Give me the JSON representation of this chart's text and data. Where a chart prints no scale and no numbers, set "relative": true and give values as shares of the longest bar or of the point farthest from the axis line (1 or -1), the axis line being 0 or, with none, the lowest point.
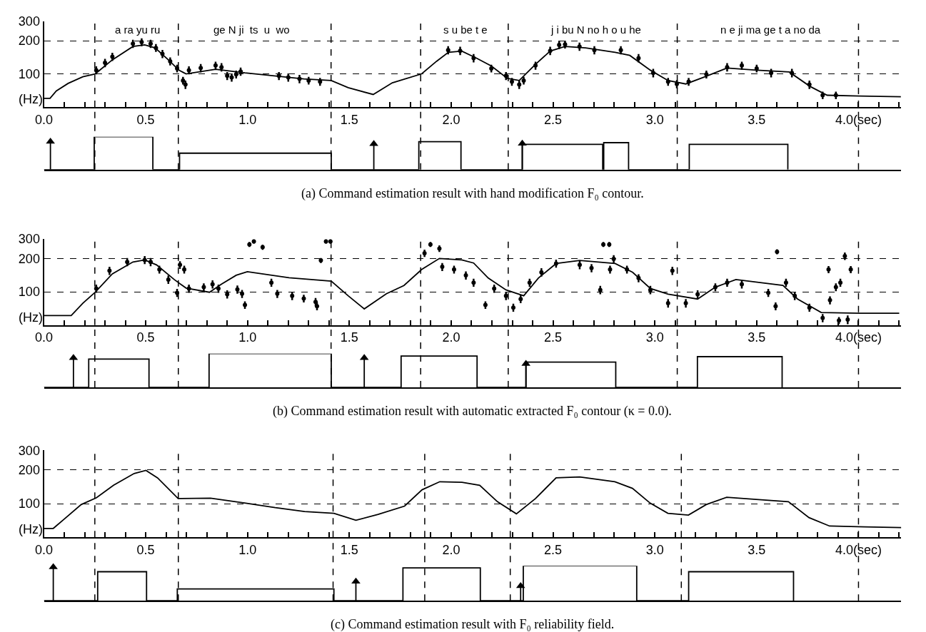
{
  "chart_data": [
    {
      "type": "line",
      "ylabel": "(Hz)",
      "log": true,
      "grid": "y",
      "xlim": [
        0,
        4.21
      ],
      "ylim": [
        50,
        300
      ],
      "yticks": [
        100,
        200,
        300
      ],
      "xticks": [
        {
          "value": 0,
          "label": "0.0"
        },
        {
          "value": 0.1,
          "label": null
        },
        {
          "value": 0.2,
          "label": null
        },
        {
          "value": 0.3,
          "label": null
        },
        {
          "value": 0.4,
          "label": null
        },
        {
          "value": 0.5,
          "label": "0.5"
        },
        {
          "value": 0.6,
          "label": null
        },
        {
          "value": 0.7,
          "label": null
        },
        {
          "value": 0.8,
          "label": null
        },
        {
          "value": 0.9,
          "label": null
        },
        {
          "value": 1.0,
          "label": "1.0"
        },
        {
          "value": 1.1,
          "label": null
        },
        {
          "value": 1.2,
          "label": null
        },
        {
          "value": 1.3,
          "label": null
        },
        {
          "value": 1.4,
          "label": null
        },
        {
          "value": 1.5,
          "label": "1.5"
        },
        {
          "value": 1.6,
          "label": null
        },
        {
          "value": 1.7,
          "label": null
        },
        {
          "value": 1.8,
          "label": null
        },
        {
          "value": 1.9,
          "label": null
        },
        {
          "value": 2.0,
          "label": "2.0"
        },
        {
          "value": 2.1,
          "label": null
        },
        {
          "value": 2.2,
          "label": null
        },
        {
          "value": 2.3,
          "label": null
        },
        {
          "value": 2.4,
          "label": null
        },
        {
          "value": 2.5,
          "label": "2.5"
        },
        {
          "value": 2.6,
          "label": null
        },
        {
          "value": 2.7,
          "label": null
        },
        {
          "value": 2.8,
          "label": null
        },
        {
          "value": 2.9,
          "label": null
        },
        {
          "value": 3.0,
          "label": "3.0"
        },
        {
          "value": 3.1,
          "label": null
        },
        {
          "value": 3.2,
          "label": null
        },
        {
          "value": 3.3,
          "label": null
        },
        {
          "value": 3.4,
          "label": null
        },
        {
          "value": 3.5,
          "label": "3.5"
        },
        {
          "value": 3.6,
          "label": null
        },
        {
          "value": 3.7,
          "label": null
        },
        {
          "value": 3.8,
          "label": null
        },
        {
          "value": 3.9,
          "label": null
        },
        {
          "value": 4.0,
          "label": "4.0(sec)"
        },
        {
          "value": 4.1,
          "label": null
        },
        {
          "value": 4.2,
          "label": null
        }
      ],
      "ref_lines": [
        {
          "axis": "x",
          "value": 0.25,
          "line_style": "dashed"
        },
        {
          "axis": "x",
          "value": 0.66,
          "line_style": "dashed"
        },
        {
          "axis": "x",
          "value": 1.41,
          "line_style": "dashed"
        },
        {
          "axis": "x",
          "value": 1.85,
          "line_style": "dashed"
        },
        {
          "axis": "x",
          "value": 2.28,
          "line_style": "dashed"
        },
        {
          "axis": "x",
          "value": 3.11,
          "line_style": "dashed"
        },
        {
          "axis": "x",
          "value": 4.0,
          "line_style": "dashed"
        }
      ],
      "annotations": [
        "a ra yu ru",
        "ge N ji  ts  u  wo",
        "s u be t e",
        "j i bu N no h o u he",
        "n e ji ma ge t a no da"
      ],
      "series": [
        {
          "color": "#000000",
          "x": [
            0,
            0.03,
            0.061,
            0.119,
            0.191,
            0.252,
            0.336,
            0.437,
            0.495,
            0.546,
            0.611,
            0.663,
            0.698,
            0.843,
            0.987,
            1.132,
            1.276,
            1.411,
            1.494,
            1.617,
            1.711,
            1.855,
            1.928,
            1.986,
            2.052,
            2.124,
            2.197,
            2.276,
            2.334,
            2.414,
            2.486,
            2.559,
            2.66,
            2.805,
            2.877,
            2.978,
            3.065,
            3.152,
            3.239,
            3.355,
            3.5,
            3.66,
            3.762,
            3.846,
            4.005,
            4.208
          ],
          "values": [
            60,
            60,
            70,
            82,
            94,
            100,
            134,
            177,
            183,
            172,
            134,
            108,
            100,
            110,
            102,
            96,
            90,
            87,
            75,
            65,
            83,
            100,
            130,
            157,
            161,
            139,
            118,
            91,
            87,
            122,
            161,
            177,
            172,
            157,
            147,
            108,
            87,
            81,
            93,
            113,
            108,
            104,
            77,
            64,
            63,
            62
          ]
        },
        {
          "type": "scatter",
          "color": "#000000",
          "marker": "none",
          "x": [
            0.257,
            0.3,
            0.336,
            0.437,
            0.48,
            0.524,
            0.55,
            0.582,
            0.62,
            0.654,
            0.683,
            0.695,
            0.712,
            0.77,
            0.843,
            0.872,
            0.9,
            0.922,
            0.944,
            0.966,
            1.154,
            1.2,
            1.255,
            1.3,
            1.356,
            1.985,
            2.044,
            2.11,
            2.197,
            2.269,
            2.298,
            2.334,
            2.356,
            2.414,
            2.486,
            2.53,
            2.559,
            2.63,
            2.703,
            2.833,
            2.92,
            2.992,
            3.065,
            3.108,
            3.166,
            3.253,
            3.355,
            3.427,
            3.5,
            3.571,
            3.673,
            3.759,
            3.824,
            3.889
          ],
          "values": [
            108,
            126,
            143,
            188,
            194,
            188,
            172,
            152,
            130,
            112,
            87,
            80,
            108,
            113,
            119,
            115,
            96,
            93,
            99,
            105,
            96,
            93,
            90,
            87,
            85,
            164,
            162,
            139,
            112,
            96,
            85,
            80,
            87,
            119,
            162,
            183,
            185,
            177,
            164,
            164,
            139,
            102,
            85,
            81,
            85,
            99,
            115,
            119,
            112,
            102,
            102,
            80,
            64,
            64
          ],
          "errors": [
            9,
            11,
            12,
            16,
            16,
            16,
            14,
            13,
            11,
            9,
            7,
            7,
            9,
            10,
            10,
            10,
            8,
            8,
            8,
            9,
            8,
            8,
            8,
            7,
            7,
            14,
            14,
            12,
            9,
            8,
            7,
            7,
            7,
            10,
            14,
            15,
            15,
            15,
            14,
            14,
            12,
            9,
            7,
            7,
            7,
            8,
            10,
            10,
            9,
            9,
            9,
            7,
            5,
            5
          ]
        }
      ]
    },
    {
      "type": "step",
      "relative": true,
      "tick_labels": false,
      "xlim": [
        0,
        4.21
      ],
      "ref_lines": [
        {
          "axis": "x",
          "value": 0.25,
          "line_style": "dashed"
        },
        {
          "axis": "x",
          "value": 0.66,
          "line_style": "dashed"
        },
        {
          "axis": "x",
          "value": 1.41,
          "line_style": "dashed"
        },
        {
          "axis": "x",
          "value": 1.85,
          "line_style": "dashed"
        },
        {
          "axis": "x",
          "value": 2.28,
          "line_style": "dashed"
        },
        {
          "axis": "x",
          "value": 3.11,
          "line_style": "dashed"
        },
        {
          "axis": "x",
          "value": 4.0,
          "line_style": "dashed"
        }
      ],
      "annotations": [
        "(a) Command estimation result with hand modification F₀ contour."
      ],
      "series": [
        {
          "color": "#000000",
          "x": [
            0,
            0.247,
            0.535,
            0.666,
            1.411,
            1.841,
            2.048,
            2.349,
            2.744,
            2.749,
            2.871,
            3.169,
            3.653
          ],
          "values": [
            0,
            1.0,
            0,
            0.5,
            0,
            0.85,
            0,
            0.77,
            0,
            0.82,
            0,
            0.77,
            0
          ]
        },
        {
          "type": "lollipop",
          "color": "#000000",
          "marker": "triangle",
          "x": [
            0.032,
            1.62,
            2.349
          ],
          "values": [
            0.85,
            0.78,
            0.79
          ]
        }
      ]
    },
    {
      "type": "line",
      "ylabel": "(Hz)",
      "log": true,
      "grid": "y",
      "xlim": [
        0,
        4.21
      ],
      "ylim": [
        50,
        300
      ],
      "yticks": [
        100,
        200,
        300
      ],
      "xticks": [
        {
          "value": 0,
          "label": "0.0"
        },
        {
          "value": 0.1,
          "label": null
        },
        {
          "value": 0.2,
          "label": null
        },
        {
          "value": 0.3,
          "label": null
        },
        {
          "value": 0.4,
          "label": null
        },
        {
          "value": 0.5,
          "label": "0.5"
        },
        {
          "value": 0.6,
          "label": null
        },
        {
          "value": 0.7,
          "label": null
        },
        {
          "value": 0.8,
          "label": null
        },
        {
          "value": 0.9,
          "label": null
        },
        {
          "value": 1.0,
          "label": "1.0"
        },
        {
          "value": 1.1,
          "label": null
        },
        {
          "value": 1.2,
          "label": null
        },
        {
          "value": 1.3,
          "label": null
        },
        {
          "value": 1.4,
          "label": null
        },
        {
          "value": 1.5,
          "label": "1.5"
        },
        {
          "value": 1.6,
          "label": null
        },
        {
          "value": 1.7,
          "label": null
        },
        {
          "value": 1.8,
          "label": null
        },
        {
          "value": 1.9,
          "label": null
        },
        {
          "value": 2.0,
          "label": "2.0"
        },
        {
          "value": 2.1,
          "label": null
        },
        {
          "value": 2.2,
          "label": null
        },
        {
          "value": 2.3,
          "label": null
        },
        {
          "value": 2.4,
          "label": null
        },
        {
          "value": 2.5,
          "label": "2.5"
        },
        {
          "value": 2.6,
          "label": null
        },
        {
          "value": 2.7,
          "label": null
        },
        {
          "value": 2.8,
          "label": null
        },
        {
          "value": 2.9,
          "label": null
        },
        {
          "value": 3.0,
          "label": "3.0"
        },
        {
          "value": 3.1,
          "label": null
        },
        {
          "value": 3.2,
          "label": null
        },
        {
          "value": 3.3,
          "label": null
        },
        {
          "value": 3.4,
          "label": null
        },
        {
          "value": 3.5,
          "label": "3.5"
        },
        {
          "value": 3.6,
          "label": null
        },
        {
          "value": 3.7,
          "label": null
        },
        {
          "value": 3.8,
          "label": null
        },
        {
          "value": 3.9,
          "label": null
        },
        {
          "value": 4.0,
          "label": "4.0(sec)"
        },
        {
          "value": 4.1,
          "label": null
        },
        {
          "value": 4.2,
          "label": null
        }
      ],
      "ref_lines": [
        {
          "axis": "x",
          "value": 0.25,
          "line_style": "dashed"
        },
        {
          "axis": "x",
          "value": 0.66,
          "line_style": "dashed"
        },
        {
          "axis": "x",
          "value": 1.41,
          "line_style": "dashed"
        },
        {
          "axis": "x",
          "value": 1.85,
          "line_style": "dashed"
        },
        {
          "axis": "x",
          "value": 2.28,
          "line_style": "dashed"
        },
        {
          "axis": "x",
          "value": 3.11,
          "line_style": "dashed"
        },
        {
          "axis": "x",
          "value": 4.0,
          "line_style": "dashed"
        }
      ],
      "series": [
        {
          "color": "#000000",
          "x": [
            0,
            0.134,
            0.192,
            0.252,
            0.336,
            0.437,
            0.495,
            0.553,
            0.64,
            0.698,
            0.813,
            0.871,
            0.944,
            0.999,
            1.204,
            1.411,
            1.494,
            1.573,
            1.682,
            1.768,
            1.855,
            1.942,
            2.052,
            2.11,
            2.182,
            2.269,
            2.356,
            2.428,
            2.515,
            2.631,
            2.805,
            2.891,
            2.978,
            3.065,
            3.21,
            3.297,
            3.398,
            3.629,
            3.701,
            3.817,
            4.005,
            4.2
          ],
          "values": [
            61,
            61,
            79,
            99,
            145,
            186,
            194,
            175,
            129,
            108,
            99,
            117,
            141,
            152,
            134,
            125,
            92,
            70,
            96,
            114,
            159,
            200,
            194,
            182,
            133,
            104,
            92,
            133,
            180,
            192,
            180,
            150,
            107,
            95,
            86,
            110,
            129,
            114,
            86,
            65,
            64,
            64
          ]
        },
        {
          "type": "scatter",
          "color": "#000000",
          "marker": "none",
          "x": [
            0.257,
            0.322,
            0.409,
            0.495,
            0.524,
            0.567,
            0.611,
            0.654,
            0.668,
            0.689,
            0.712,
            0.785,
            0.828,
            0.857,
            0.9,
            0.95,
            0.973,
            0.987,
            1.009,
            1.031,
            1.074,
            1.117,
            1.146,
            1.219,
            1.276,
            1.334,
            1.341,
            1.36,
            1.385,
            1.407,
            1.869,
            1.898,
            1.942,
            1.956,
            2.014,
            2.072,
            2.11,
            2.168,
            2.211,
            2.269,
            2.305,
            2.341,
            2.385,
            2.443,
            2.515,
            2.631,
            2.689,
            2.732,
            2.747,
            2.776,
            2.78,
            2.798,
            2.863,
            2.92,
            2.978,
            3.065,
            3.086,
            3.152,
            3.21,
            3.297,
            3.355,
            3.427,
            3.557,
            3.593,
            3.6,
            3.644,
            3.687,
            3.759,
            3.824,
            3.853,
            3.86,
            3.889,
            3.904,
            3.911,
            3.933,
            3.947,
            3.962
          ],
          "values": [
            107,
            155,
            186,
            194,
            186,
            159,
            129,
            98,
            175,
            159,
            107,
            110,
            117,
            107,
            95,
            105,
            96,
            76,
            268,
            285,
            253,
            121,
            96,
            92,
            87,
            81,
            74,
            192,
            285,
            285,
            223,
            268,
            246,
            168,
            159,
            141,
            121,
            76,
            107,
            92,
            72,
            86,
            121,
            150,
            180,
            175,
            164,
            104,
            268,
            268,
            159,
            198,
            159,
            133,
            104,
            79,
            155,
            79,
            95,
            110,
            121,
            117,
            98,
            74,
            230,
            121,
            92,
            72,
            58,
            159,
            84,
            110,
            55,
            121,
            210,
            56,
            159
          ],
          "errors": [
            9,
            13,
            16,
            16,
            16,
            13,
            11,
            8,
            14,
            13,
            9,
            9,
            10,
            9,
            8,
            9,
            8,
            6,
            14,
            12,
            14,
            10,
            8,
            8,
            7,
            7,
            6,
            10,
            12,
            12,
            17,
            14,
            17,
            14,
            13,
            12,
            10,
            6,
            9,
            8,
            6,
            7,
            10,
            13,
            15,
            15,
            14,
            9,
            14,
            14,
            13,
            16,
            13,
            11,
            9,
            7,
            13,
            7,
            8,
            9,
            10,
            10,
            8,
            6,
            12,
            10,
            8,
            6,
            5,
            12,
            7,
            9,
            4,
            10,
            16,
            5,
            12
          ]
        }
      ]
    },
    {
      "type": "step",
      "relative": true,
      "tick_labels": false,
      "xlim": [
        0,
        4.21
      ],
      "ref_lines": [
        {
          "axis": "x",
          "value": 0.25,
          "line_style": "dashed"
        },
        {
          "axis": "x",
          "value": 0.66,
          "line_style": "dashed"
        },
        {
          "axis": "x",
          "value": 1.41,
          "line_style": "dashed"
        },
        {
          "axis": "x",
          "value": 1.85,
          "line_style": "dashed"
        },
        {
          "axis": "x",
          "value": 2.28,
          "line_style": "dashed"
        },
        {
          "axis": "x",
          "value": 3.11,
          "line_style": "dashed"
        },
        {
          "axis": "x",
          "value": 4.0,
          "line_style": "dashed"
        }
      ],
      "annotations": [
        "(b) Command estimation result with automatic extracted F₀ contour (κ = 0.0)."
      ],
      "series": [
        {
          "color": "#000000",
          "x": [
            0,
            0.22,
            0.516,
            0.811,
            1.411,
            1.754,
            2.127,
            2.367,
            2.808,
            3.209,
            3.625
          ],
          "values": [
            0,
            0.84,
            0,
            1.0,
            0,
            0.93,
            0,
            0.75,
            0,
            0.91,
            0
          ]
        },
        {
          "type": "lollipop",
          "color": "#000000",
          "marker": "triangle",
          "x": [
            0.145,
            1.573,
            2.367
          ],
          "values": [
            0.87,
            0.87,
            0.7
          ]
        }
      ]
    },
    {
      "type": "line",
      "ylabel": "(Hz)",
      "log": true,
      "grid": "y",
      "xlim": [
        0,
        4.21
      ],
      "ylim": [
        50,
        300
      ],
      "yticks": [
        100,
        200,
        300
      ],
      "xticks": [
        {
          "value": 0,
          "label": "0.0"
        },
        {
          "value": 0.1,
          "label": null
        },
        {
          "value": 0.2,
          "label": null
        },
        {
          "value": 0.3,
          "label": null
        },
        {
          "value": 0.4,
          "label": null
        },
        {
          "value": 0.5,
          "label": "0.5"
        },
        {
          "value": 0.6,
          "label": null
        },
        {
          "value": 0.7,
          "label": null
        },
        {
          "value": 0.8,
          "label": null
        },
        {
          "value": 0.9,
          "label": null
        },
        {
          "value": 1.0,
          "label": "1.0"
        },
        {
          "value": 1.1,
          "label": null
        },
        {
          "value": 1.2,
          "label": null
        },
        {
          "value": 1.3,
          "label": null
        },
        {
          "value": 1.4,
          "label": null
        },
        {
          "value": 1.5,
          "label": "1.5"
        },
        {
          "value": 1.6,
          "label": null
        },
        {
          "value": 1.7,
          "label": null
        },
        {
          "value": 1.8,
          "label": null
        },
        {
          "value": 1.9,
          "label": null
        },
        {
          "value": 2.0,
          "label": "2.0"
        },
        {
          "value": 2.1,
          "label": null
        },
        {
          "value": 2.2,
          "label": null
        },
        {
          "value": 2.3,
          "label": null
        },
        {
          "value": 2.4,
          "label": null
        },
        {
          "value": 2.5,
          "label": "2.5"
        },
        {
          "value": 2.6,
          "label": null
        },
        {
          "value": 2.7,
          "label": null
        },
        {
          "value": 2.8,
          "label": null
        },
        {
          "value": 2.9,
          "label": null
        },
        {
          "value": 3.0,
          "label": "3.0"
        },
        {
          "value": 3.1,
          "label": null
        },
        {
          "value": 3.2,
          "label": null
        },
        {
          "value": 3.3,
          "label": null
        },
        {
          "value": 3.4,
          "label": null
        },
        {
          "value": 3.5,
          "label": "3.5"
        },
        {
          "value": 3.6,
          "label": null
        },
        {
          "value": 3.7,
          "label": null
        },
        {
          "value": 3.8,
          "label": null
        },
        {
          "value": 3.9,
          "label": null
        },
        {
          "value": 4.0,
          "label": "4.0(sec)"
        },
        {
          "value": 4.1,
          "label": null
        },
        {
          "value": 4.2,
          "label": null
        }
      ],
      "ref_lines": [
        {
          "axis": "x",
          "value": 0.25,
          "line_style": "dashed"
        },
        {
          "axis": "x",
          "value": 0.66,
          "line_style": "dashed"
        },
        {
          "axis": "x",
          "value": 1.42,
          "line_style": "dashed"
        },
        {
          "axis": "x",
          "value": 1.87,
          "line_style": "dashed"
        },
        {
          "axis": "x",
          "value": 2.29,
          "line_style": "dashed"
        },
        {
          "axis": "x",
          "value": 3.13,
          "line_style": "dashed"
        },
        {
          "axis": "x",
          "value": 4.0,
          "line_style": "dashed"
        }
      ],
      "series": [
        {
          "color": "#000000",
          "x": [
            0,
            0.046,
            0.097,
            0.183,
            0.258,
            0.342,
            0.443,
            0.501,
            0.558,
            0.659,
            0.818,
            0.991,
            1.136,
            1.28,
            1.424,
            1.532,
            1.641,
            1.771,
            1.857,
            1.944,
            2.053,
            2.14,
            2.227,
            2.32,
            2.414,
            2.515,
            2.631,
            2.804,
            2.89,
            2.977,
            3.064,
            3.165,
            3.252,
            3.353,
            3.497,
            3.656,
            3.757,
            3.858,
            4.031,
            4.21
          ],
          "values": [
            60,
            60,
            72,
            98,
            113,
            146,
            186,
            198,
            170,
            111,
            112,
            101,
            92,
            85,
            82,
            71,
            80,
            95,
            133,
            157,
            155,
            146,
            104,
            81,
            111,
            170,
            173,
            157,
            137,
            101,
            82,
            79,
            98,
            114,
            109,
            104,
            75,
            63,
            62,
            61
          ]
        }
      ]
    },
    {
      "type": "step",
      "relative": true,
      "tick_labels": false,
      "xlim": [
        0,
        4.21
      ],
      "ref_lines": [
        {
          "axis": "x",
          "value": 0.25,
          "line_style": "dashed"
        },
        {
          "axis": "x",
          "value": 0.66,
          "line_style": "dashed"
        },
        {
          "axis": "x",
          "value": 1.42,
          "line_style": "dashed"
        },
        {
          "axis": "x",
          "value": 1.87,
          "line_style": "dashed"
        },
        {
          "axis": "x",
          "value": 2.29,
          "line_style": "dashed"
        },
        {
          "axis": "x",
          "value": 3.13,
          "line_style": "dashed"
        },
        {
          "axis": "x",
          "value": 4.0,
          "line_style": "dashed"
        }
      ],
      "annotations": [
        "(c) Command estimation result with F₀ reliability field."
      ],
      "series": [
        {
          "color": "#000000",
          "x": [
            0,
            0.264,
            0.504,
            0.655,
            1.424,
            1.763,
            2.143,
            2.354,
            2.911,
            3.166,
            3.681
          ],
          "values": [
            0,
            0.83,
            0,
            0.34,
            0,
            0.94,
            0,
            1.0,
            0,
            0.83,
            0
          ]
        },
        {
          "type": "lollipop",
          "color": "#000000",
          "marker": "triangle",
          "x": [
            0.046,
            1.532,
            2.341
          ],
          "values": [
            0.96,
            0.55,
            0.42
          ]
        }
      ]
    }
  ]
}
